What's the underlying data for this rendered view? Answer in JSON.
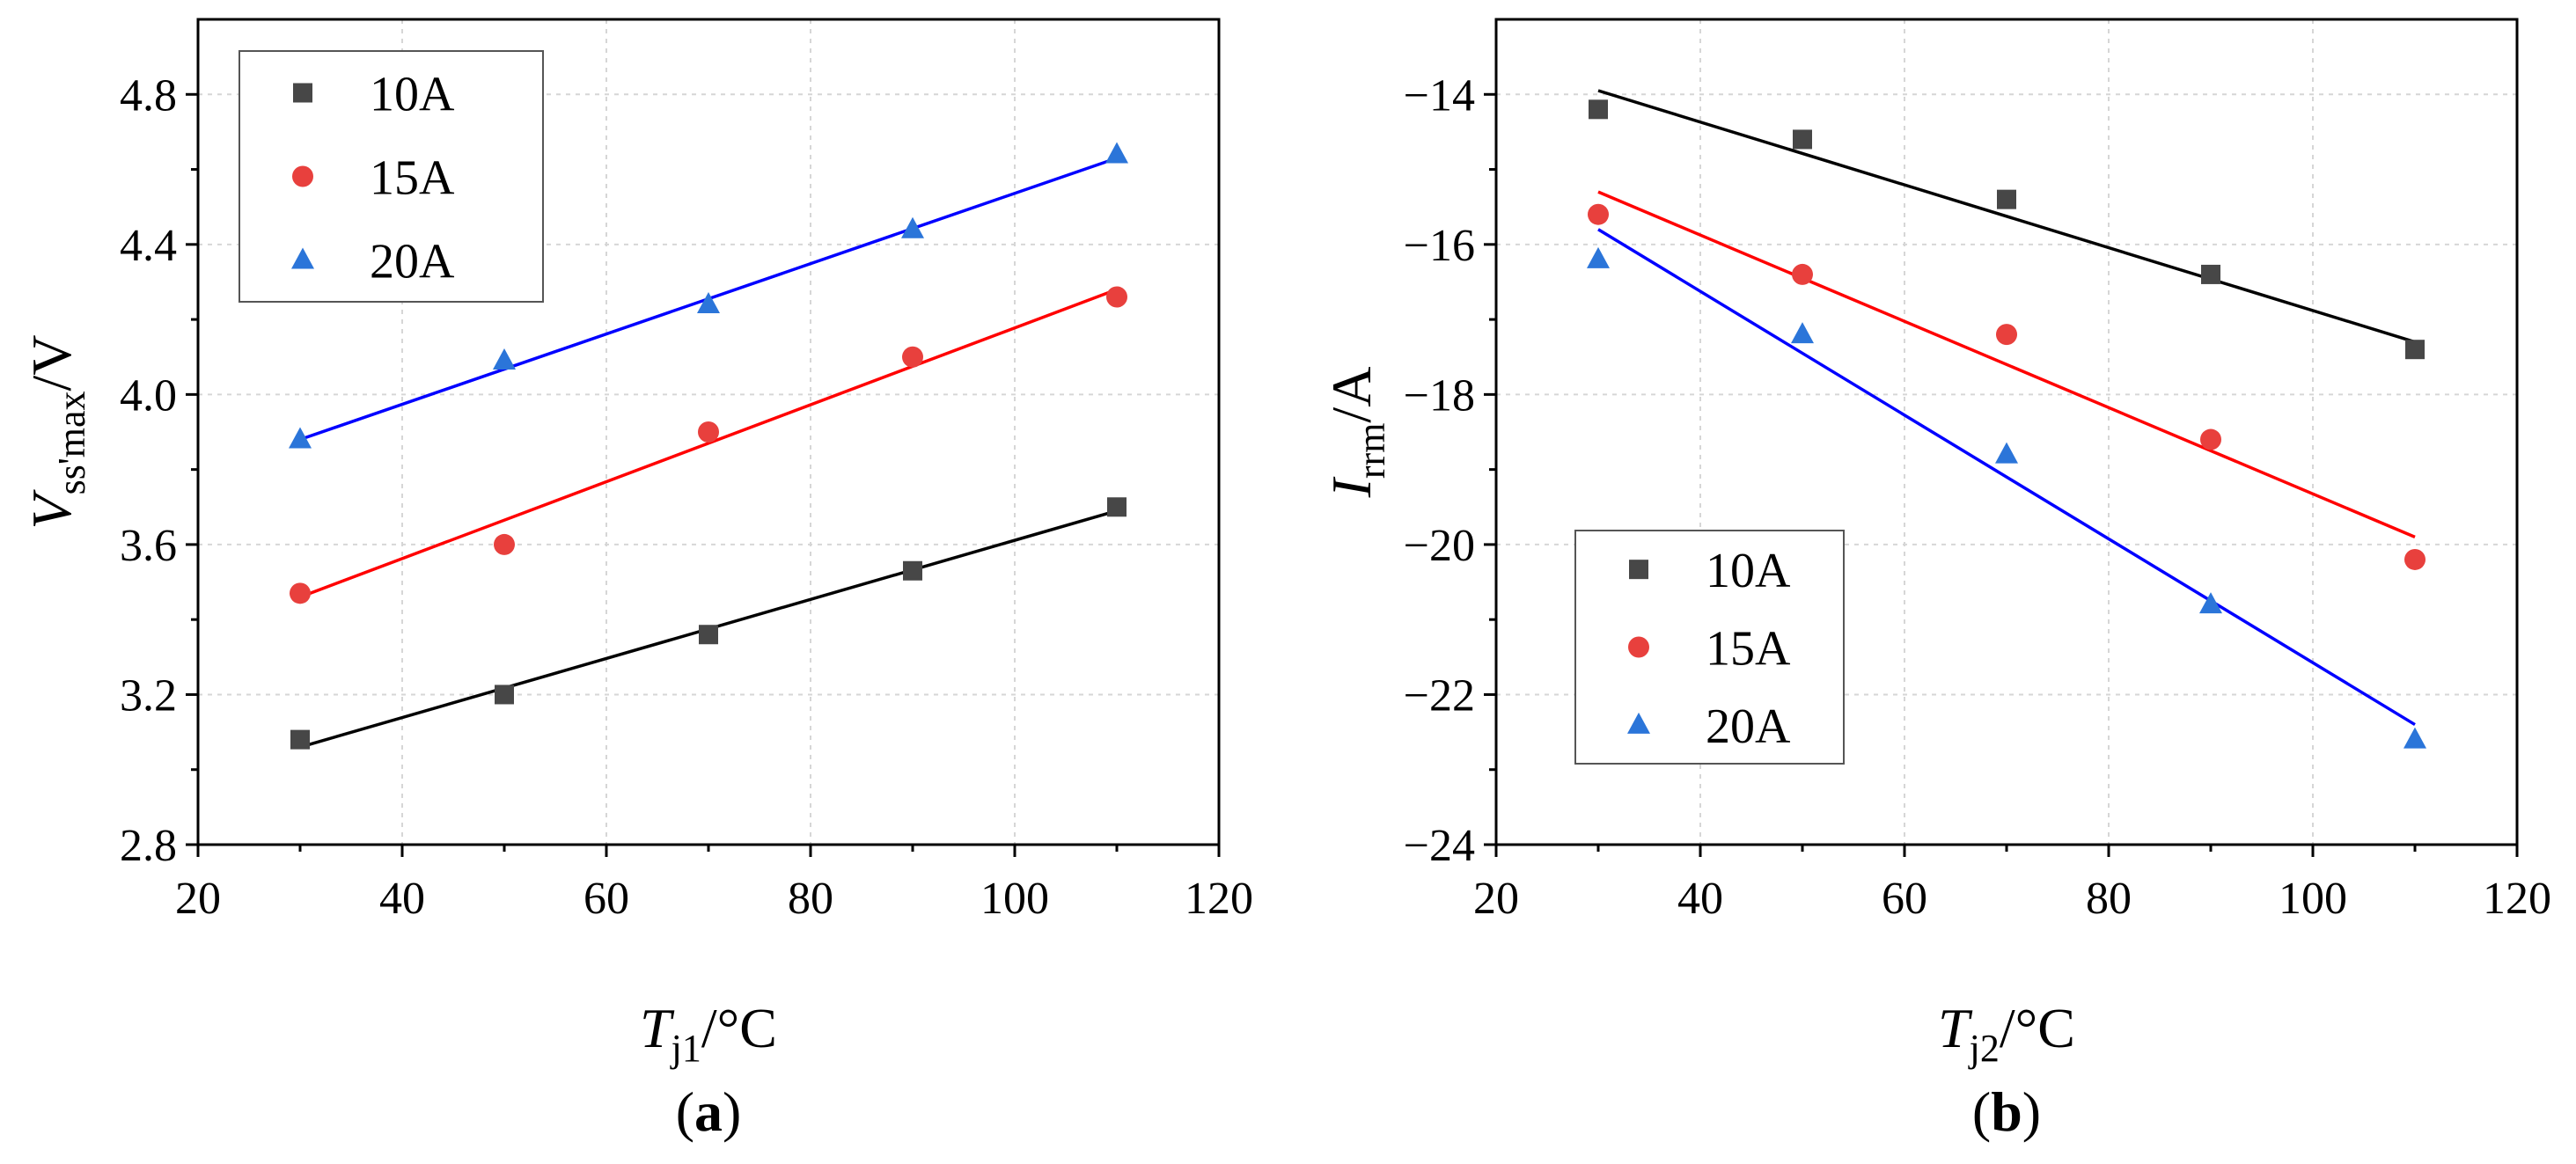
{
  "chart_data": [
    {
      "type": "scatter",
      "panel": "a",
      "panel_label": "(a)",
      "xlabel": {
        "symbol": "T",
        "subscript": "j1",
        "unit": "/°C"
      },
      "ylabel": {
        "symbol": "V",
        "subscript": "ss'max",
        "unit": "/V"
      },
      "xlim": [
        20,
        120
      ],
      "ylim": [
        2.8,
        5.0
      ],
      "xticks": [
        20,
        40,
        60,
        80,
        100,
        120
      ],
      "xtick_labels": [
        "20",
        "40",
        "60",
        "80",
        "100",
        "120"
      ],
      "yticks": [
        2.8,
        3.2,
        3.6,
        4.0,
        4.4,
        4.8
      ],
      "ytick_labels": [
        "2.8",
        "3.2",
        "3.6",
        "4.0",
        "4.4",
        "4.8"
      ],
      "grid": true,
      "legend_position": "top-left",
      "series": [
        {
          "name": "10A",
          "marker": "square",
          "color": "#474747",
          "line_color": "#000000",
          "x": [
            30,
            50,
            70,
            90,
            110
          ],
          "y": [
            3.08,
            3.2,
            3.36,
            3.53,
            3.7
          ],
          "fit": {
            "x": [
              30,
              110
            ],
            "y": [
              3.06,
              3.69
            ]
          }
        },
        {
          "name": "15A",
          "marker": "circle",
          "color": "#e8403d",
          "line_color": "#ff0000",
          "x": [
            30,
            50,
            70,
            90,
            110
          ],
          "y": [
            3.47,
            3.6,
            3.9,
            4.1,
            4.26
          ],
          "fit": {
            "x": [
              30,
              110
            ],
            "y": [
              3.46,
              4.28
            ]
          }
        },
        {
          "name": "20A",
          "marker": "triangle",
          "color": "#2b75d9",
          "line_color": "#0000ff",
          "x": [
            30,
            50,
            70,
            90,
            110
          ],
          "y": [
            3.88,
            4.09,
            4.24,
            4.44,
            4.64
          ],
          "fit": {
            "x": [
              30,
              110
            ],
            "y": [
              3.88,
              4.63
            ]
          }
        }
      ]
    },
    {
      "type": "scatter",
      "panel": "b",
      "panel_label": "(b)",
      "xlabel": {
        "symbol": "T",
        "subscript": "j2",
        "unit": "/°C"
      },
      "ylabel": {
        "symbol": "I",
        "subscript": "rrm",
        "unit": "/A"
      },
      "xlim": [
        20,
        120
      ],
      "ylim": [
        -24,
        -13
      ],
      "xticks": [
        20,
        40,
        60,
        80,
        100,
        120
      ],
      "xtick_labels": [
        "20",
        "40",
        "60",
        "80",
        "100",
        "120"
      ],
      "yticks": [
        -24,
        -22,
        -20,
        -18,
        -16,
        -14
      ],
      "ytick_labels": [
        "−24",
        "−22",
        "−20",
        "−18",
        "−16",
        "−14"
      ],
      "grid": true,
      "legend_position": "bottom-left",
      "series": [
        {
          "name": "10A",
          "marker": "square",
          "color": "#474747",
          "line_color": "#000000",
          "x": [
            30,
            50,
            70,
            90,
            110
          ],
          "y": [
            -14.2,
            -14.6,
            -15.4,
            -16.4,
            -17.4
          ],
          "fit": {
            "x": [
              30,
              110
            ],
            "y": [
              -13.95,
              -17.3
            ]
          }
        },
        {
          "name": "15A",
          "marker": "circle",
          "color": "#e8403d",
          "line_color": "#ff0000",
          "x": [
            30,
            50,
            70,
            90,
            110
          ],
          "y": [
            -15.6,
            -16.4,
            -17.2,
            -18.6,
            -20.2
          ],
          "fit": {
            "x": [
              30,
              110
            ],
            "y": [
              -15.3,
              -19.9
            ]
          }
        },
        {
          "name": "20A",
          "marker": "triangle",
          "color": "#2b75d9",
          "line_color": "#0000ff",
          "x": [
            30,
            50,
            70,
            90,
            110
          ],
          "y": [
            -16.2,
            -17.2,
            -18.8,
            -20.8,
            -22.6
          ],
          "fit": {
            "x": [
              30,
              110
            ],
            "y": [
              -15.8,
              -22.4
            ]
          }
        }
      ]
    }
  ]
}
